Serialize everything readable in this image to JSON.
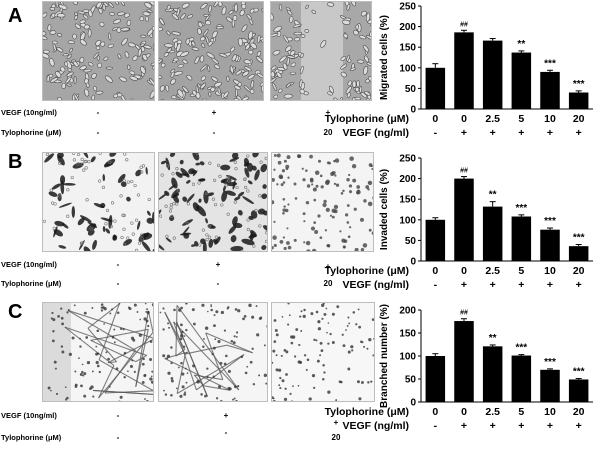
{
  "panels": [
    {
      "letter": "A",
      "micro_labels": [
        "VEGF (10ng/ml)",
        "Tylophorine (μM)"
      ],
      "micro_signs": [
        [
          "-",
          "+",
          "+"
        ],
        [
          "-",
          "-",
          "20"
        ]
      ],
      "chart_index": 0
    },
    {
      "letter": "B",
      "micro_labels": [
        "VEGF (10ng/ml)",
        "Tylophorine (μM)"
      ],
      "micro_signs": [
        [
          "-",
          "+",
          "+"
        ],
        [
          "-",
          "-",
          "20"
        ]
      ],
      "chart_index": 1
    },
    {
      "letter": "C",
      "micro_labels": [
        "VEGF (10ng/ml)",
        "Tylophorine (μM)"
      ],
      "micro_signs": [
        [
          "-",
          "+",
          "+"
        ],
        [
          "-",
          "-",
          "20"
        ]
      ],
      "chart_index": 2
    }
  ],
  "chart_data": [
    {
      "type": "bar",
      "categories": [
        "0",
        "0",
        "2.5",
        "5",
        "10",
        "20"
      ],
      "values": [
        100,
        186,
        166,
        137,
        90,
        40
      ],
      "errors": [
        10,
        5,
        5,
        4,
        4,
        4
      ],
      "significance": [
        "",
        "##",
        "",
        "**",
        "***",
        "***"
      ],
      "ylabel": "Migrated cells (%)",
      "ylim": [
        0,
        250
      ],
      "yticks": [
        0,
        50,
        100,
        150,
        200,
        250
      ],
      "row_labels": [
        "Tylophorine (μM)",
        "VEGF (ng/ml)"
      ],
      "vegf_row": [
        "-",
        "+",
        "+",
        "+",
        "+",
        "+"
      ],
      "colors": {
        "bar": "#000000"
      }
    },
    {
      "type": "bar",
      "categories": [
        "0",
        "0",
        "2.5",
        "5",
        "10",
        "20"
      ],
      "values": [
        100,
        200,
        132,
        108,
        76,
        36
      ],
      "errors": [
        5,
        5,
        12,
        4,
        4,
        4
      ],
      "significance": [
        "",
        "##",
        "**",
        "***",
        "***",
        "***"
      ],
      "ylabel": "Invaded cells (%)",
      "ylim": [
        0,
        250
      ],
      "yticks": [
        0,
        50,
        100,
        150,
        200,
        250
      ],
      "row_labels": [
        "Tylophorine (μM)",
        "VEGF (ng/ml)"
      ],
      "vegf_row": [
        "-",
        "+",
        "+",
        "+",
        "+",
        "+"
      ],
      "colors": {
        "bar": "#000000"
      }
    },
    {
      "type": "bar",
      "categories": [
        "0",
        "0",
        "2.5",
        "5",
        "10",
        "20"
      ],
      "values": [
        100,
        176,
        121,
        101,
        70,
        49
      ],
      "errors": [
        5,
        5,
        3,
        2,
        2,
        2
      ],
      "significance": [
        "",
        "##",
        "**",
        "***",
        "***",
        "***"
      ],
      "ylabel": "Branched number (%)",
      "ylim": [
        0,
        200
      ],
      "yticks": [
        0,
        50,
        100,
        150,
        200
      ],
      "row_labels": [
        "Tylophorine (μM)",
        "VEGF (ng/ml)"
      ],
      "vegf_row": [
        "-",
        "+",
        "+",
        "+",
        "+",
        "+"
      ],
      "colors": {
        "bar": "#000000"
      }
    }
  ]
}
